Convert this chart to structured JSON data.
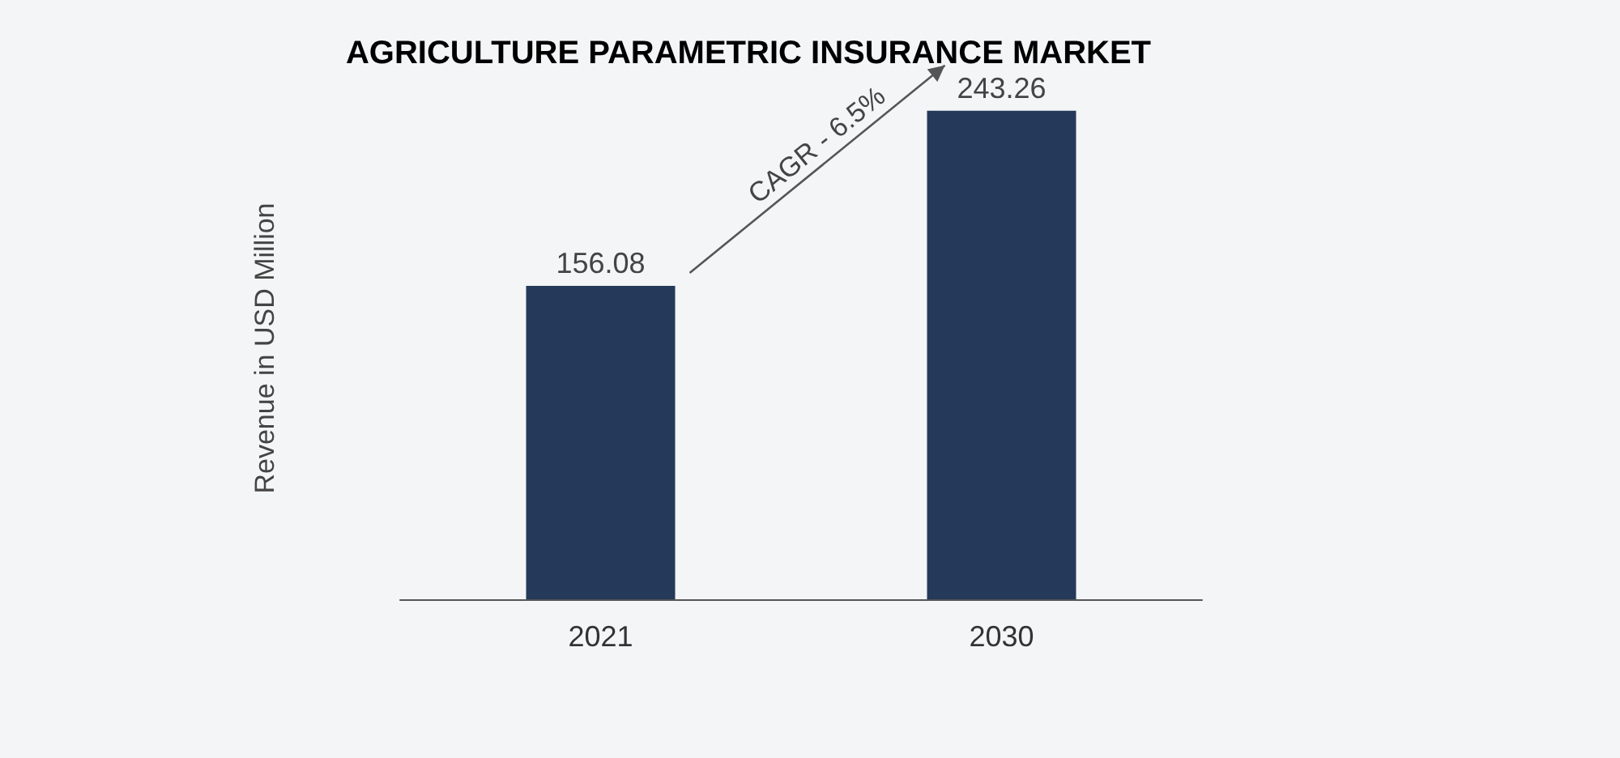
{
  "chart_data": {
    "type": "bar",
    "title": "AGRICULTURE PARAMETRIC INSURANCE MARKET",
    "ylabel": "Revenue in USD Million",
    "categories": [
      "2021",
      "2030"
    ],
    "values": [
      156.08,
      243.26
    ],
    "color": "#253a5a",
    "data_labels": true,
    "annotations": [
      "CAGR - 6.5%"
    ]
  }
}
